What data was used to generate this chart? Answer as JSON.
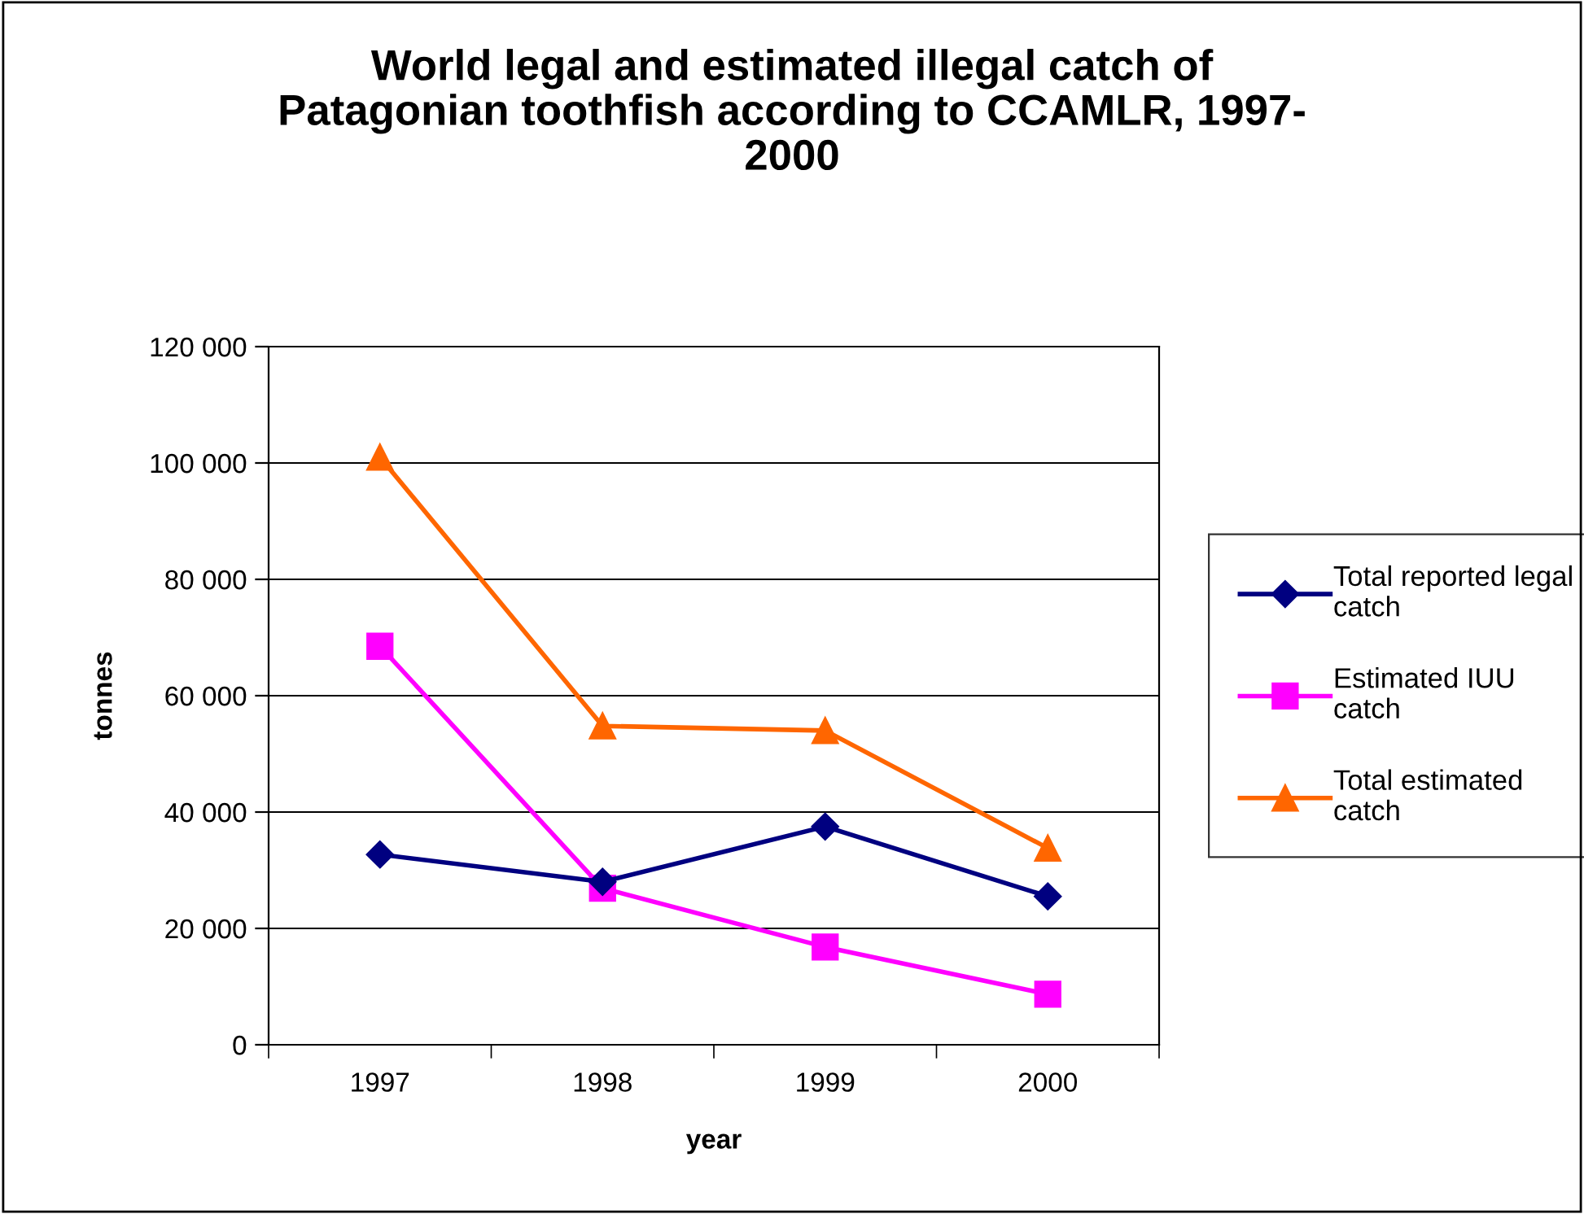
{
  "chart_data": {
    "type": "line",
    "title": "World legal and estimated illegal catch of\nPatagonian toothfish according to CCAMLR, 1997-\n2000",
    "xlabel": "year",
    "ylabel": "tonnes",
    "categories": [
      "1997",
      "1998",
      "1999",
      "2000"
    ],
    "series": [
      {
        "name": "Total reported legal\ncatch",
        "color": "#000080",
        "marker": "diamond",
        "values": [
          32700,
          28000,
          37500,
          25500
        ]
      },
      {
        "name": "Estimated IUU\ncatch",
        "color": "#ff00ff",
        "marker": "square",
        "values": [
          68500,
          26900,
          16800,
          8700
        ]
      },
      {
        "name": "Total estimated\ncatch",
        "color": "#ff6600",
        "marker": "triangle",
        "values": [
          101000,
          54800,
          54000,
          33800
        ]
      }
    ],
    "ylim": [
      0,
      120000
    ],
    "yticks": [
      {
        "value": 0,
        "label": "0"
      },
      {
        "value": 20000,
        "label": "20 000"
      },
      {
        "value": 40000,
        "label": "40 000"
      },
      {
        "value": 60000,
        "label": "60 000"
      },
      {
        "value": 80000,
        "label": "80 000"
      },
      {
        "value": 100000,
        "label": "100 000"
      },
      {
        "value": 120000,
        "label": "120 000"
      }
    ],
    "grid": "y",
    "legend": "right",
    "line_style": "solid"
  }
}
